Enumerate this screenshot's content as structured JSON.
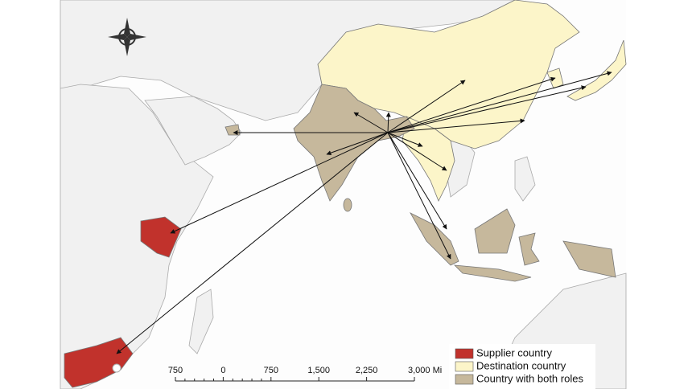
{
  "legend": [
    {
      "label": "Supplier country",
      "color": "#c1322c"
    },
    {
      "label": "Destination country",
      "color": "#fcf5c9"
    },
    {
      "label": "Country with both roles",
      "color": "#c6b89c"
    }
  ],
  "scale_bar": {
    "labels": [
      "750",
      "0",
      "750",
      "1,500",
      "2,250",
      "3,000 Mi"
    ]
  }
}
